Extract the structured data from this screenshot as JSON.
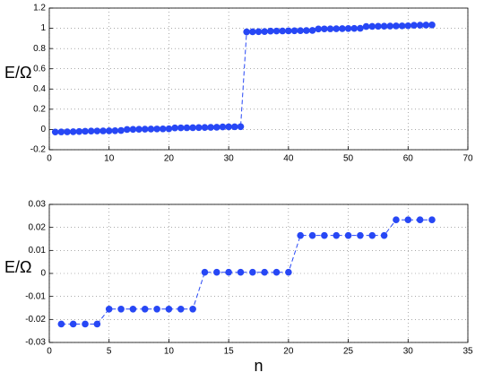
{
  "chart_data": [
    {
      "type": "line",
      "ylabel": "E/Ω",
      "color": "#2747f5",
      "grid": true,
      "x": [
        1,
        2,
        3,
        4,
        5,
        6,
        7,
        8,
        9,
        10,
        11,
        12,
        13,
        14,
        15,
        16,
        17,
        18,
        19,
        20,
        21,
        22,
        23,
        24,
        25,
        26,
        27,
        28,
        29,
        30,
        31,
        32,
        33,
        34,
        35,
        36,
        37,
        38,
        39,
        40,
        41,
        42,
        43,
        44,
        45,
        46,
        47,
        48,
        49,
        50,
        51,
        52,
        53,
        54,
        55,
        56,
        57,
        58,
        59,
        60,
        61,
        62,
        63,
        64
      ],
      "values": [
        -0.025,
        -0.024,
        -0.023,
        -0.022,
        -0.02,
        -0.018,
        -0.016,
        -0.015,
        -0.014,
        -0.013,
        -0.012,
        -0.01,
        0,
        0.001,
        0.002,
        0.003,
        0.004,
        0.005,
        0.006,
        0.007,
        0.015,
        0.016,
        0.017,
        0.018,
        0.019,
        0.02,
        0.021,
        0.022,
        0.025,
        0.026,
        0.027,
        0.028,
        0.965,
        0.966,
        0.967,
        0.968,
        0.972,
        0.973,
        0.974,
        0.975,
        0.976,
        0.977,
        0.978,
        0.979,
        0.993,
        0.994,
        0.995,
        0.996,
        0.997,
        0.998,
        0.999,
        1.0,
        1.018,
        1.019,
        1.02,
        1.021,
        1.022,
        1.023,
        1.024,
        1.025,
        1.03,
        1.031,
        1.032,
        1.033
      ],
      "xlim": [
        0,
        70
      ],
      "xticks": [
        0,
        10,
        20,
        30,
        40,
        50,
        60,
        70
      ],
      "ylim": [
        -0.2,
        1.2
      ],
      "yticks": [
        -0.2,
        0,
        0.2,
        0.4,
        0.6,
        0.8,
        1,
        1.2
      ]
    },
    {
      "type": "line",
      "ylabel": "E/Ω",
      "xlabel": "n",
      "color": "#2747f5",
      "grid": true,
      "x": [
        1,
        2,
        3,
        4,
        5,
        6,
        7,
        8,
        9,
        10,
        11,
        12,
        13,
        14,
        15,
        16,
        17,
        18,
        19,
        20,
        21,
        22,
        23,
        24,
        25,
        26,
        27,
        28,
        29,
        30,
        31,
        32
      ],
      "values": [
        -0.022,
        -0.022,
        -0.022,
        -0.022,
        -0.0155,
        -0.0155,
        -0.0155,
        -0.0155,
        -0.0155,
        -0.0155,
        -0.0155,
        -0.0155,
        0.0005,
        0.0005,
        0.0005,
        0.0005,
        0.0005,
        0.0005,
        0.0005,
        0.0005,
        0.0165,
        0.0165,
        0.0165,
        0.0165,
        0.0165,
        0.0165,
        0.0165,
        0.0165,
        0.0233,
        0.0233,
        0.0233,
        0.0233
      ],
      "xlim": [
        0,
        35
      ],
      "xticks": [
        0,
        5,
        10,
        15,
        20,
        25,
        30,
        35
      ],
      "ylim": [
        -0.03,
        0.03
      ],
      "yticks": [
        -0.03,
        -0.02,
        -0.01,
        0,
        0.01,
        0.02,
        0.03
      ]
    }
  ]
}
